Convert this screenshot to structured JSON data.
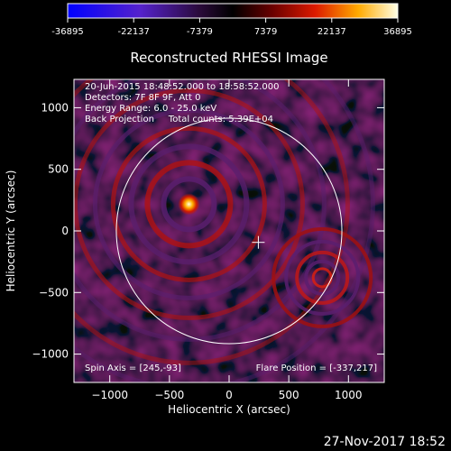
{
  "chart_data": {
    "type": "heatmap",
    "title": "Reconstructed RHESSI Image",
    "xlabel": "Heliocentric X (arcsec)",
    "ylabel": "Heliocentric Y (arcsec)",
    "xlim": [
      -1300,
      1300
    ],
    "ylim": [
      -1230,
      1230
    ],
    "x_ticks": [
      -1000,
      -500,
      0,
      500,
      1000
    ],
    "y_ticks": [
      -1000,
      -500,
      0,
      500,
      1000
    ],
    "colorbar": {
      "min": -36895,
      "max": 36895,
      "tick_labels": [
        "-36895",
        "-22137",
        "-7379",
        "7379",
        "22137",
        "36895"
      ]
    },
    "info_lines": [
      "20-Jun-2015 18:48:52.000 to 18:58:52.000",
      "Detectors: 7F 8F 9F, Att 0",
      "Energy Range: 6.0 - 25.0 keV",
      "Back Projection     Total counts: 5.39E+04"
    ],
    "spin_axis_label": "Spin Axis = [245,-93]",
    "flare_position_label": "Flare Position = [-337,217]",
    "date_stamp": "27-Nov-2017 18:52",
    "spin_axis": [
      245,
      -93
    ],
    "flare_position": [
      -337,
      217
    ],
    "solar_limb_radius": 945,
    "secondary_source": [
      780,
      -380
    ]
  }
}
